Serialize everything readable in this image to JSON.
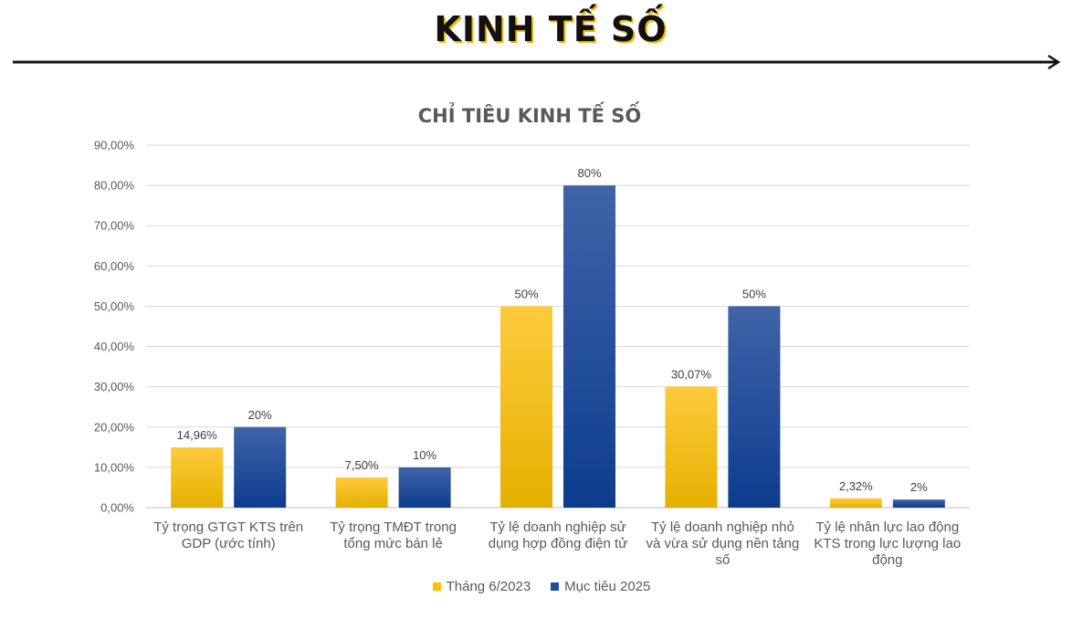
{
  "header": {
    "title": "KINH TẾ SỐ"
  },
  "chart_data": {
    "type": "bar",
    "title": "CHỈ TIÊU KINH TẾ SỐ",
    "xlabel": "",
    "ylabel": "",
    "ylim": [
      0,
      90
    ],
    "yticks": [
      0,
      10,
      20,
      30,
      40,
      50,
      60,
      70,
      80,
      90
    ],
    "ytick_labels": [
      "0,00%",
      "10,00%",
      "20,00%",
      "30,00%",
      "40,00%",
      "50,00%",
      "60,00%",
      "70,00%",
      "80,00%",
      "90,00%"
    ],
    "grid": true,
    "legend_position": "bottom",
    "categories": [
      [
        "Tỷ trọng GTGT KTS trên",
        "GDP (ước tính)"
      ],
      [
        "Tỷ trọng TMĐT trong",
        "tổng mức bán lẻ"
      ],
      [
        "Tỷ lệ doanh nghiệp sử",
        "dụng hợp đồng điện tử"
      ],
      [
        "Tỷ lệ doanh nghiệp nhỏ",
        "và vừa sử dụng nền tảng",
        "số"
      ],
      [
        "Tỷ lệ nhân lực lao động",
        "KTS trong lực lượng lao",
        "động"
      ]
    ],
    "series": [
      {
        "name": "Tháng 6/2023",
        "color": "#FFC000",
        "values": [
          14.96,
          7.5,
          50,
          30.07,
          2.32
        ],
        "labels": [
          "14,96%",
          "7,50%",
          "50%",
          "30,07%",
          "2,32%"
        ]
      },
      {
        "name": "Mục tiêu 2025",
        "color": "#1F4E9B",
        "values": [
          20,
          10,
          80,
          50,
          2
        ],
        "labels": [
          "20%",
          "10%",
          "80%",
          "50%",
          "2%"
        ]
      }
    ]
  }
}
